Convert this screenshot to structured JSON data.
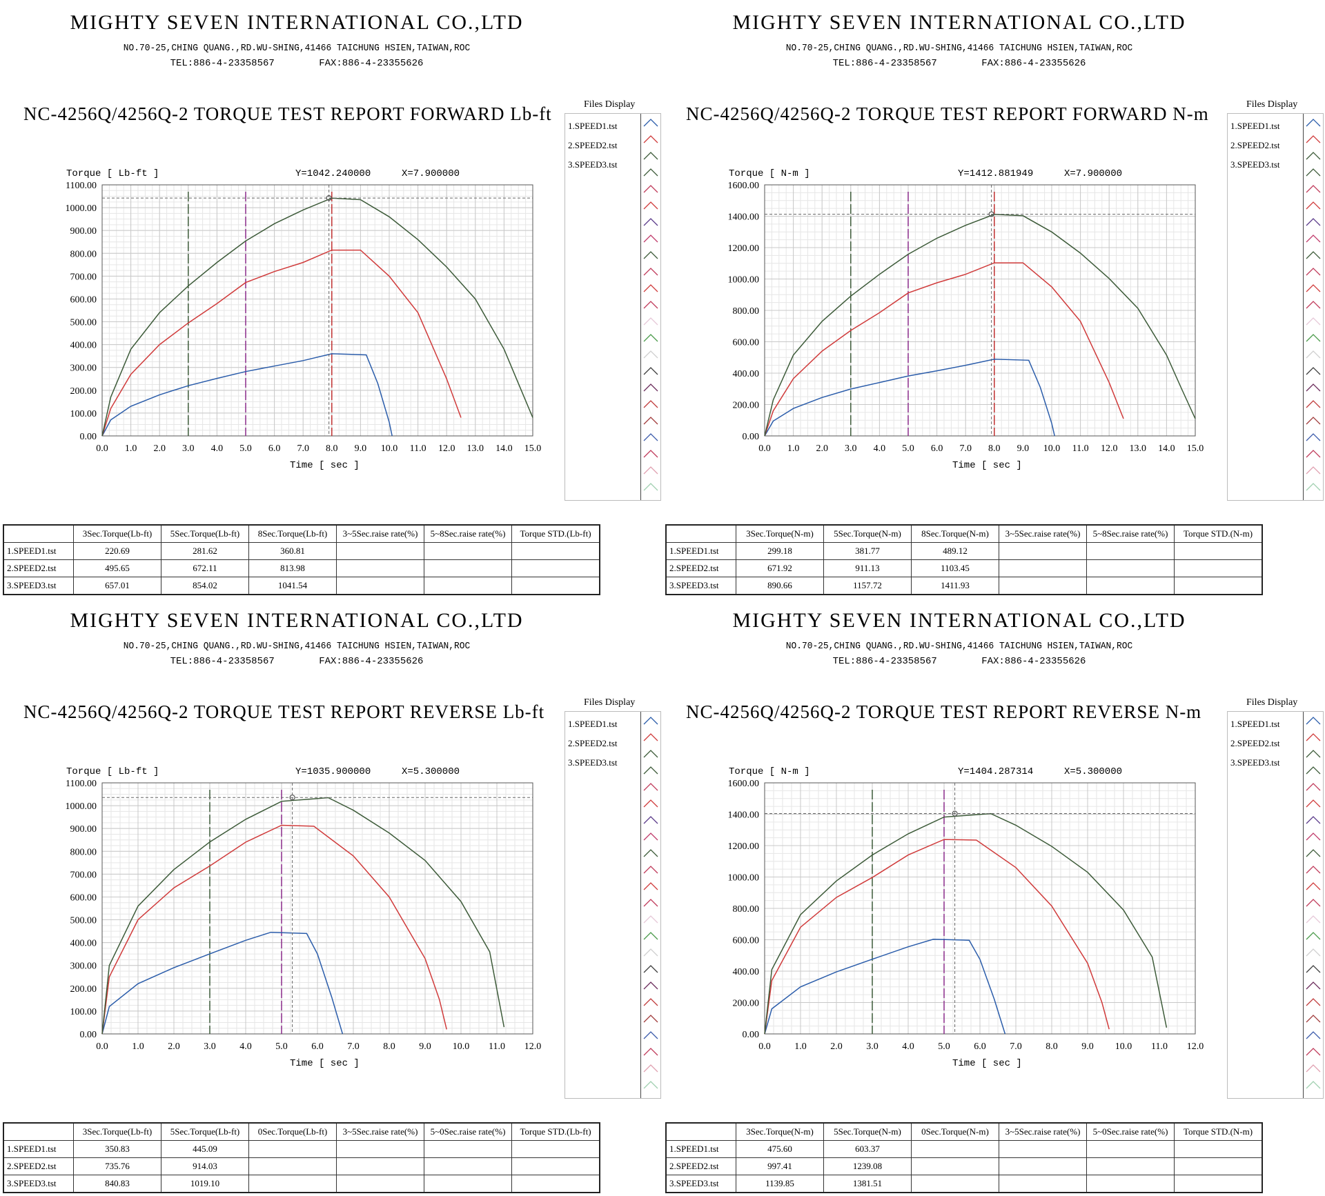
{
  "company": {
    "name": "MIGHTY SEVEN INTERNATIONAL CO.,LTD",
    "address": "NO.70-25,CHING QUANG.,RD.WU-SHING,41466 TAICHUNG HSIEN,TAIWAN,ROC",
    "tel": "TEL:886-4-23358567",
    "fax": "FAX:886-4-23355626"
  },
  "files_display": {
    "title": "Files Display",
    "items": [
      "1.SPEED1.tst",
      "2.SPEED2.tst",
      "3.SPEED3.tst"
    ]
  },
  "colors": {
    "speed1": "#2a5caa",
    "speed2": "#d03a3a",
    "speed3": "#3c5a38"
  },
  "reports": [
    {
      "title": "NC-4256Q/4256Q-2 TORQUE TEST REPORT FORWARD Lb-ft",
      "ylabel": "Torque [ Lb-ft ]",
      "xlabel": "Time [ sec ]",
      "cursor_y": "Y=1042.240000",
      "cursor_x": "X=7.900000",
      "table_headers": [
        "",
        "3Sec.Torque(Lb-ft)",
        "5Sec.Torque(Lb-ft)",
        "8Sec.Torque(Lb-ft)",
        "3~5Sec.raise rate(%)",
        "5~8Sec.raise rate(%)",
        "Torque STD.(Lb-ft)"
      ],
      "table_rows": [
        [
          "1.SPEED1.tst",
          "220.69",
          "281.62",
          "360.81",
          "",
          "",
          ""
        ],
        [
          "2.SPEED2.tst",
          "495.65",
          "672.11",
          "813.98",
          "",
          "",
          ""
        ],
        [
          "3.SPEED3.tst",
          "657.01",
          "854.02",
          "1041.54",
          "",
          "",
          ""
        ]
      ]
    },
    {
      "title": "NC-4256Q/4256Q-2 TORQUE TEST REPORT FORWARD N-m",
      "ylabel": "Torque [ N-m ]",
      "xlabel": "Time [ sec ]",
      "cursor_y": "Y=1412.881949",
      "cursor_x": "X=7.900000",
      "table_headers": [
        "",
        "3Sec.Torque(N-m)",
        "5Sec.Torque(N-m)",
        "8Sec.Torque(N-m)",
        "3~5Sec.raise rate(%)",
        "5~8Sec.raise rate(%)",
        "Torque STD.(N-m)"
      ],
      "table_rows": [
        [
          "1.SPEED1.tst",
          "299.18",
          "381.77",
          "489.12",
          "",
          "",
          ""
        ],
        [
          "2.SPEED2.tst",
          "671.92",
          "911.13",
          "1103.45",
          "",
          "",
          ""
        ],
        [
          "3.SPEED3.tst",
          "890.66",
          "1157.72",
          "1411.93",
          "",
          "",
          ""
        ]
      ]
    },
    {
      "title": "NC-4256Q/4256Q-2 TORQUE TEST REPORT REVERSE Lb-ft",
      "ylabel": "Torque [ Lb-ft ]",
      "xlabel": "Time [ sec ]",
      "cursor_y": "Y=1035.900000",
      "cursor_x": "X=5.300000",
      "table_headers": [
        "",
        "3Sec.Torque(Lb-ft)",
        "5Sec.Torque(Lb-ft)",
        "0Sec.Torque(Lb-ft)",
        "3~5Sec.raise rate(%)",
        "5~0Sec.raise rate(%)",
        "Torque STD.(Lb-ft)"
      ],
      "table_rows": [
        [
          "1.SPEED1.tst",
          "350.83",
          "445.09",
          "",
          "",
          "",
          ""
        ],
        [
          "2.SPEED2.tst",
          "735.76",
          "914.03",
          "",
          "",
          "",
          ""
        ],
        [
          "3.SPEED3.tst",
          "840.83",
          "1019.10",
          "",
          "",
          "",
          ""
        ]
      ]
    },
    {
      "title": "NC-4256Q/4256Q-2 TORQUE TEST REPORT REVERSE N-m",
      "ylabel": "Torque [ N-m ]",
      "xlabel": "Time [ sec ]",
      "cursor_y": "Y=1404.287314",
      "cursor_x": "X=5.300000",
      "table_headers": [
        "",
        "3Sec.Torque(N-m)",
        "5Sec.Torque(N-m)",
        "0Sec.Torque(N-m)",
        "3~5Sec.raise rate(%)",
        "5~0Sec.raise rate(%)",
        "Torque STD.(N-m)"
      ],
      "table_rows": [
        [
          "1.SPEED1.tst",
          "475.60",
          "603.37",
          "",
          "",
          "",
          ""
        ],
        [
          "2.SPEED2.tst",
          "997.41",
          "1239.08",
          "",
          "",
          "",
          ""
        ],
        [
          "3.SPEED3.tst",
          "1139.85",
          "1381.51",
          "",
          "",
          "",
          ""
        ]
      ]
    }
  ],
  "chart_data": [
    {
      "type": "line",
      "title": "NC-4256Q/4256Q-2 TORQUE TEST REPORT FORWARD Lb-ft",
      "xlabel": "Time [ sec ]",
      "ylabel": "Torque [ Lb-ft ]",
      "xlim": [
        0,
        15
      ],
      "ylim": [
        0,
        1100
      ],
      "xticks": [
        "0.0",
        "1.0",
        "2.0",
        "3.0",
        "4.0",
        "5.0",
        "6.0",
        "7.0",
        "8.0",
        "9.0",
        "10.0",
        "11.0",
        "12.0",
        "13.0",
        "14.0",
        "15.0"
      ],
      "yticks": [
        "0.00",
        "100.00",
        "200.00",
        "300.00",
        "400.00",
        "500.00",
        "600.00",
        "700.00",
        "800.00",
        "900.00",
        "1000.00",
        "1100.00"
      ],
      "markers": [
        3,
        5,
        8
      ],
      "cursor": {
        "x": 7.9,
        "y": 1042.24
      },
      "grid": true,
      "series": [
        {
          "name": "1.SPEED1.tst",
          "x": [
            0,
            0.3,
            1,
            2,
            3,
            4,
            5,
            6,
            7,
            8,
            9.2,
            9.6,
            10.0,
            10.1
          ],
          "y": [
            0,
            70,
            130,
            180,
            220,
            252,
            282,
            306,
            330,
            360,
            355,
            230,
            60,
            0
          ]
        },
        {
          "name": "2.SPEED2.tst",
          "x": [
            0,
            0.3,
            1,
            2,
            3,
            4,
            5,
            6,
            7,
            8,
            9,
            10,
            11,
            12,
            12.5
          ],
          "y": [
            0,
            120,
            270,
            400,
            495,
            580,
            672,
            720,
            760,
            814,
            814,
            700,
            540,
            250,
            80
          ]
        },
        {
          "name": "3.SPEED3.tst",
          "x": [
            0,
            0.3,
            1,
            2,
            3,
            4,
            5,
            6,
            7,
            8,
            9,
            10,
            11,
            12,
            13,
            14,
            14.5,
            15.0
          ],
          "y": [
            0,
            170,
            380,
            540,
            657,
            760,
            854,
            930,
            990,
            1042,
            1035,
            960,
            860,
            740,
            600,
            380,
            230,
            80
          ]
        }
      ]
    },
    {
      "type": "line",
      "title": "NC-4256Q/4256Q-2 TORQUE TEST REPORT FORWARD N-m",
      "xlabel": "Time [ sec ]",
      "ylabel": "Torque [ N-m ]",
      "xlim": [
        0,
        15
      ],
      "ylim": [
        0,
        1600
      ],
      "xticks": [
        "0.0",
        "1.0",
        "2.0",
        "3.0",
        "4.0",
        "5.0",
        "6.0",
        "7.0",
        "8.0",
        "9.0",
        "10.0",
        "11.0",
        "12.0",
        "13.0",
        "14.0",
        "15.0"
      ],
      "yticks": [
        "0.00",
        "200.00",
        "400.00",
        "600.00",
        "800.00",
        "1000.00",
        "1200.00",
        "1400.00",
        "1600.00"
      ],
      "markers": [
        3,
        5,
        8
      ],
      "cursor": {
        "x": 7.9,
        "y": 1412.88
      },
      "grid": true,
      "series": [
        {
          "name": "1.SPEED1.tst",
          "x": [
            0,
            0.3,
            1,
            2,
            3,
            4,
            5,
            6,
            7,
            8,
            9.2,
            9.6,
            10.0,
            10.1
          ],
          "y": [
            0,
            95,
            175,
            245,
            299,
            340,
            382,
            415,
            450,
            489,
            482,
            310,
            80,
            0
          ]
        },
        {
          "name": "2.SPEED2.tst",
          "x": [
            0,
            0.3,
            1,
            2,
            3,
            4,
            5,
            6,
            7,
            8,
            9,
            10,
            11,
            12,
            12.5
          ],
          "y": [
            0,
            160,
            365,
            540,
            672,
            785,
            911,
            976,
            1030,
            1103,
            1103,
            950,
            730,
            340,
            110
          ]
        },
        {
          "name": "3.SPEED3.tst",
          "x": [
            0,
            0.3,
            1,
            2,
            3,
            4,
            5,
            6,
            7,
            8,
            9,
            10,
            11,
            12,
            13,
            14,
            14.5,
            15.0
          ],
          "y": [
            0,
            230,
            515,
            730,
            891,
            1030,
            1158,
            1260,
            1342,
            1412,
            1403,
            1300,
            1165,
            1003,
            813,
            515,
            310,
            110
          ]
        }
      ]
    },
    {
      "type": "line",
      "title": "NC-4256Q/4256Q-2 TORQUE TEST REPORT REVERSE Lb-ft",
      "xlabel": "Time [ sec ]",
      "ylabel": "Torque [ Lb-ft ]",
      "xlim": [
        0,
        12
      ],
      "ylim": [
        0,
        1100
      ],
      "xticks": [
        "0.0",
        "1.0",
        "2.0",
        "3.0",
        "4.0",
        "5.0",
        "6.0",
        "7.0",
        "8.0",
        "9.0",
        "10.0",
        "11.0",
        "12.0"
      ],
      "yticks": [
        "0.00",
        "100.00",
        "200.00",
        "300.00",
        "400.00",
        "500.00",
        "600.00",
        "700.00",
        "800.00",
        "900.00",
        "1000.00",
        "1100.00"
      ],
      "markers": [
        3,
        5
      ],
      "cursor": {
        "x": 5.3,
        "y": 1035.9
      },
      "grid": true,
      "series": [
        {
          "name": "1.SPEED1.tst",
          "x": [
            0,
            0.2,
            1,
            2,
            3,
            4,
            4.7,
            5.7,
            6.0,
            6.4,
            6.7
          ],
          "y": [
            0,
            120,
            220,
            290,
            351,
            410,
            445,
            440,
            350,
            160,
            0
          ]
        },
        {
          "name": "2.SPEED2.tst",
          "x": [
            0,
            0.2,
            1,
            2,
            3,
            4,
            5,
            5.9,
            7,
            8,
            9,
            9.4,
            9.6
          ],
          "y": [
            0,
            250,
            500,
            640,
            736,
            840,
            914,
            910,
            780,
            600,
            330,
            150,
            20
          ]
        },
        {
          "name": "3.SPEED3.tst",
          "x": [
            0,
            0.2,
            1,
            2,
            3,
            4,
            5,
            6.3,
            7,
            8,
            9,
            10,
            10.8,
            11.2
          ],
          "y": [
            0,
            300,
            560,
            720,
            841,
            940,
            1019,
            1035,
            980,
            880,
            760,
            580,
            360,
            30
          ]
        }
      ]
    },
    {
      "type": "line",
      "title": "NC-4256Q/4256Q-2 TORQUE TEST REPORT REVERSE N-m",
      "xlabel": "Time [ sec ]",
      "ylabel": "Torque [ N-m ]",
      "xlim": [
        0,
        12
      ],
      "ylim": [
        0,
        1600
      ],
      "xticks": [
        "0.0",
        "1.0",
        "2.0",
        "3.0",
        "4.0",
        "5.0",
        "6.0",
        "7.0",
        "8.0",
        "9.0",
        "10.0",
        "11.0",
        "12.0"
      ],
      "yticks": [
        "0.00",
        "200.00",
        "400.00",
        "600.00",
        "800.00",
        "1000.00",
        "1200.00",
        "1400.00",
        "1600.00"
      ],
      "markers": [
        3,
        5
      ],
      "cursor": {
        "x": 5.3,
        "y": 1404.29
      },
      "grid": true,
      "series": [
        {
          "name": "1.SPEED1.tst",
          "x": [
            0,
            0.2,
            1,
            2,
            3,
            4,
            4.7,
            5.7,
            6.0,
            6.4,
            6.7
          ],
          "y": [
            0,
            160,
            300,
            395,
            476,
            555,
            603,
            597,
            475,
            220,
            0
          ]
        },
        {
          "name": "2.SPEED2.tst",
          "x": [
            0,
            0.2,
            1,
            2,
            3,
            4,
            5,
            5.9,
            7,
            8,
            9,
            9.4,
            9.6
          ],
          "y": [
            0,
            340,
            680,
            870,
            997,
            1140,
            1239,
            1235,
            1060,
            815,
            450,
            200,
            30
          ]
        },
        {
          "name": "3.SPEED3.tst",
          "x": [
            0,
            0.2,
            1,
            2,
            3,
            4,
            5,
            6.3,
            7,
            8,
            9,
            10,
            10.8,
            11.2
          ],
          "y": [
            0,
            410,
            760,
            975,
            1140,
            1275,
            1382,
            1404,
            1330,
            1195,
            1030,
            790,
            490,
            40
          ]
        }
      ]
    }
  ]
}
